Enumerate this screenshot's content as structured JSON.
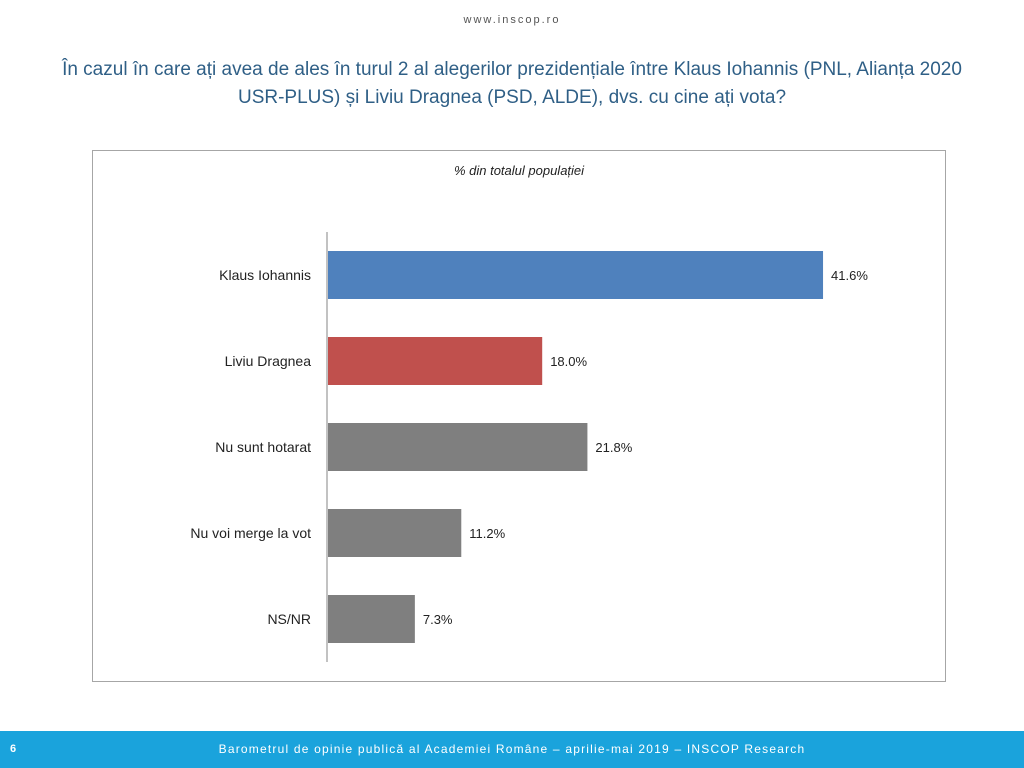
{
  "header": {
    "site": "www.inscop.ro",
    "title": "În cazul în care ați avea de ales în turul 2 al alegerilor prezidențiale între Klaus Iohannis (PNL, Alianța 2020 USR-PLUS) și Liviu Dragnea (PSD, ALDE), dvs. cu cine ați vota?"
  },
  "chart_data": {
    "type": "bar",
    "orientation": "horizontal",
    "subtitle": "% din totalul populației",
    "categories": [
      "Klaus Iohannis",
      "Liviu Dragnea",
      "Nu sunt hotarat",
      "Nu voi merge la vot",
      "NS/NR"
    ],
    "values": [
      41.6,
      18.0,
      21.8,
      11.2,
      7.3
    ],
    "value_labels": [
      "41.6%",
      "18.0%",
      "21.8%",
      "11.2%",
      "7.3%"
    ],
    "colors": [
      "#4f81bd",
      "#c0504d",
      "#7f7f7f",
      "#7f7f7f",
      "#7f7f7f"
    ],
    "xlim": [
      0,
      42
    ],
    "grid": false,
    "legend": "none"
  },
  "footer": {
    "page_number": "6",
    "text": "Barometrul de opinie publică al Academiei Române – aprilie-mai 2019 – INSCOP Research"
  }
}
